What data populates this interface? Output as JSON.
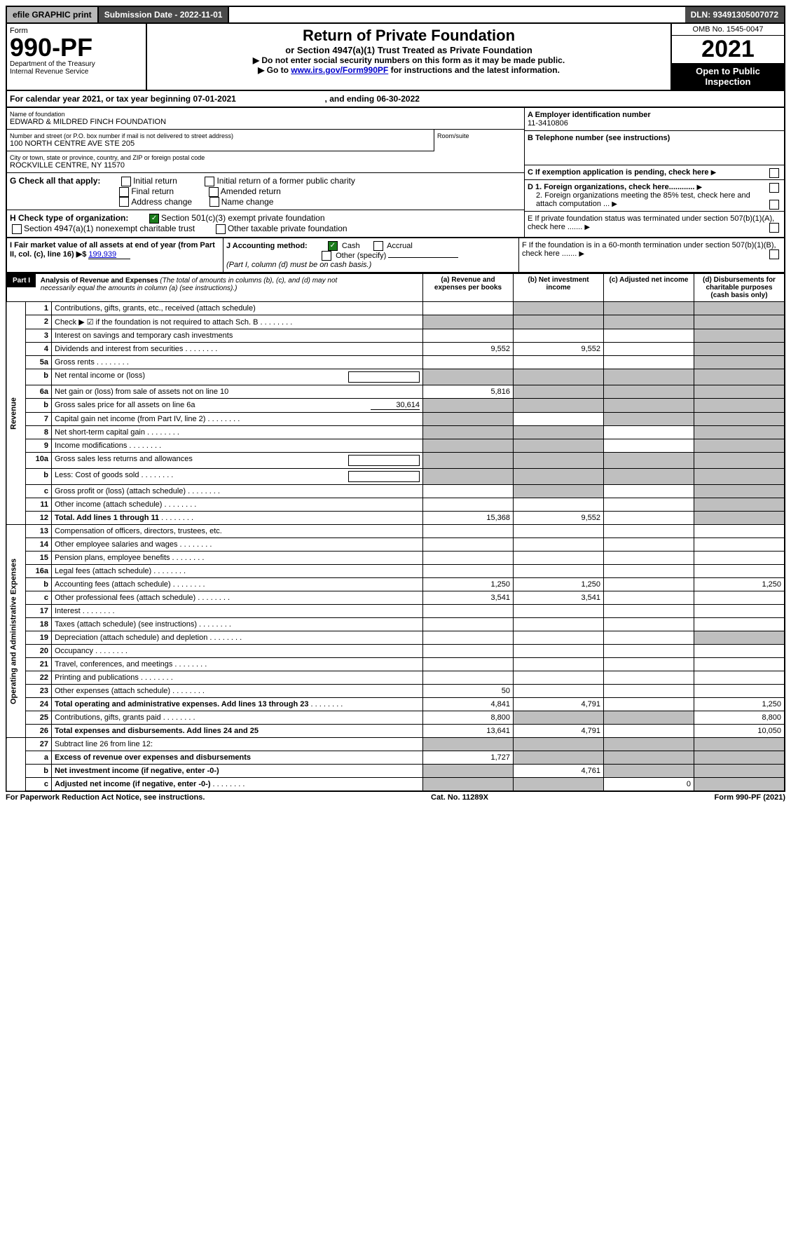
{
  "topbar": {
    "efile": "efile GRAPHIC print",
    "submission_label": "Submission Date - 2022-11-01",
    "dln": "DLN: 93491305007072"
  },
  "header": {
    "form_label": "Form",
    "form_number": "990-PF",
    "dept1": "Department of the Treasury",
    "dept2": "Internal Revenue Service",
    "title": "Return of Private Foundation",
    "subtitle": "or Section 4947(a)(1) Trust Treated as Private Foundation",
    "note1": "▶ Do not enter social security numbers on this form as it may be made public.",
    "note2_pre": "▶ Go to ",
    "note2_link": "www.irs.gov/Form990PF",
    "note2_post": " for instructions and the latest information.",
    "omb": "OMB No. 1545-0047",
    "year": "2021",
    "open": "Open to Public Inspection"
  },
  "calendar": {
    "text_pre": "For calendar year 2021, or tax year beginning ",
    "begin": "07-01-2021",
    "text_mid": " , and ending ",
    "end": "06-30-2022"
  },
  "foundation": {
    "name_label": "Name of foundation",
    "name": "EDWARD & MILDRED FINCH FOUNDATION",
    "street_label": "Number and street (or P.O. box number if mail is not delivered to street address)",
    "street": "100 NORTH CENTRE AVE STE 205",
    "room_label": "Room/suite",
    "city_label": "City or town, state or province, country, and ZIP or foreign postal code",
    "city": "ROCKVILLE CENTRE, NY  11570",
    "ein_label": "A Employer identification number",
    "ein": "11-3410806",
    "phone_label": "B Telephone number (see instructions)",
    "c_label": "C If exemption application is pending, check here",
    "d1_label": "D 1. Foreign organizations, check here............",
    "d2_label": "2. Foreign organizations meeting the 85% test, check here and attach computation ...",
    "e_label": "E  If private foundation status was terminated under section 507(b)(1)(A), check here .......",
    "f_label": "F  If the foundation is in a 60-month termination under section 507(b)(1)(B), check here ......."
  },
  "g": {
    "label": "G Check all that apply:",
    "initial": "Initial return",
    "initial_former": "Initial return of a former public charity",
    "final": "Final return",
    "amended": "Amended return",
    "address": "Address change",
    "name_change": "Name change"
  },
  "h": {
    "label": "H Check type of organization:",
    "opt1": "Section 501(c)(3) exempt private foundation",
    "opt2": "Section 4947(a)(1) nonexempt charitable trust",
    "opt3": "Other taxable private foundation"
  },
  "i": {
    "label": "I Fair market value of all assets at end of year (from Part II, col. (c), line 16) ▶$",
    "value": "199,939"
  },
  "j": {
    "label": "J Accounting method:",
    "cash": "Cash",
    "accrual": "Accrual",
    "other": "Other (specify)",
    "note": "(Part I, column (d) must be on cash basis.)"
  },
  "part1": {
    "label": "Part I",
    "title": "Analysis of Revenue and Expenses",
    "title_note": " (The total of amounts in columns (b), (c), and (d) may not necessarily equal the amounts in column (a) (see instructions).)",
    "col_a": "(a) Revenue and expenses per books",
    "col_b": "(b) Net investment income",
    "col_c": "(c) Adjusted net income",
    "col_d": "(d) Disbursements for charitable purposes (cash basis only)"
  },
  "sidelabels": {
    "revenue": "Revenue",
    "opex": "Operating and Administrative Expenses"
  },
  "rows": [
    {
      "n": "1",
      "label": "Contributions, gifts, grants, etc., received (attach schedule)",
      "a": "",
      "b": "shade",
      "c": "shade",
      "d": "shade"
    },
    {
      "n": "2",
      "label": "Check ▶ ☑ if the foundation is not required to attach Sch. B",
      "dots": true,
      "a": "shade",
      "b": "shade",
      "c": "shade",
      "d": "shade"
    },
    {
      "n": "3",
      "label": "Interest on savings and temporary cash investments",
      "a": "",
      "b": "",
      "c": "",
      "d": "shade"
    },
    {
      "n": "4",
      "label": "Dividends and interest from securities",
      "dots": true,
      "a": "9,552",
      "b": "9,552",
      "c": "",
      "d": "shade"
    },
    {
      "n": "5a",
      "label": "Gross rents",
      "dots": true,
      "a": "",
      "b": "",
      "c": "",
      "d": "shade"
    },
    {
      "n": "b",
      "label": "Net rental income or (loss)",
      "inline_box": true,
      "a": "shade",
      "b": "shade",
      "c": "shade",
      "d": "shade"
    },
    {
      "n": "6a",
      "label": "Net gain or (loss) from sale of assets not on line 10",
      "a": "5,816",
      "b": "shade",
      "c": "shade",
      "d": "shade"
    },
    {
      "n": "b",
      "label": "Gross sales price for all assets on line 6a",
      "inline_val": "30,614",
      "a": "shade",
      "b": "shade",
      "c": "shade",
      "d": "shade"
    },
    {
      "n": "7",
      "label": "Capital gain net income (from Part IV, line 2)",
      "dots": true,
      "a": "shade",
      "b": "",
      "c": "shade",
      "d": "shade"
    },
    {
      "n": "8",
      "label": "Net short-term capital gain",
      "dots": true,
      "a": "shade",
      "b": "shade",
      "c": "",
      "d": "shade"
    },
    {
      "n": "9",
      "label": "Income modifications",
      "dots": true,
      "a": "shade",
      "b": "shade",
      "c": "",
      "d": "shade"
    },
    {
      "n": "10a",
      "label": "Gross sales less returns and allowances",
      "inline_box": true,
      "a": "shade",
      "b": "shade",
      "c": "shade",
      "d": "shade"
    },
    {
      "n": "b",
      "label": "Less: Cost of goods sold",
      "dots": true,
      "inline_box": true,
      "a": "shade",
      "b": "shade",
      "c": "shade",
      "d": "shade"
    },
    {
      "n": "c",
      "label": "Gross profit or (loss) (attach schedule)",
      "dots": true,
      "a": "",
      "b": "shade",
      "c": "",
      "d": "shade"
    },
    {
      "n": "11",
      "label": "Other income (attach schedule)",
      "dots": true,
      "a": "",
      "b": "",
      "c": "",
      "d": "shade"
    },
    {
      "n": "12",
      "label": "Total. Add lines 1 through 11",
      "bold": true,
      "dots": true,
      "a": "15,368",
      "b": "9,552",
      "c": "",
      "d": "shade"
    }
  ],
  "opex_rows": [
    {
      "n": "13",
      "label": "Compensation of officers, directors, trustees, etc.",
      "a": "",
      "b": "",
      "c": "",
      "d": ""
    },
    {
      "n": "14",
      "label": "Other employee salaries and wages",
      "dots": true,
      "a": "",
      "b": "",
      "c": "",
      "d": ""
    },
    {
      "n": "15",
      "label": "Pension plans, employee benefits",
      "dots": true,
      "a": "",
      "b": "",
      "c": "",
      "d": ""
    },
    {
      "n": "16a",
      "label": "Legal fees (attach schedule)",
      "dots": true,
      "a": "",
      "b": "",
      "c": "",
      "d": ""
    },
    {
      "n": "b",
      "label": "Accounting fees (attach schedule)",
      "dots": true,
      "a": "1,250",
      "b": "1,250",
      "c": "",
      "d": "1,250"
    },
    {
      "n": "c",
      "label": "Other professional fees (attach schedule)",
      "dots": true,
      "a": "3,541",
      "b": "3,541",
      "c": "",
      "d": ""
    },
    {
      "n": "17",
      "label": "Interest",
      "dots": true,
      "a": "",
      "b": "",
      "c": "",
      "d": ""
    },
    {
      "n": "18",
      "label": "Taxes (attach schedule) (see instructions)",
      "dots": true,
      "a": "",
      "b": "",
      "c": "",
      "d": ""
    },
    {
      "n": "19",
      "label": "Depreciation (attach schedule) and depletion",
      "dots": true,
      "a": "",
      "b": "",
      "c": "",
      "d": "shade"
    },
    {
      "n": "20",
      "label": "Occupancy",
      "dots": true,
      "a": "",
      "b": "",
      "c": "",
      "d": ""
    },
    {
      "n": "21",
      "label": "Travel, conferences, and meetings",
      "dots": true,
      "a": "",
      "b": "",
      "c": "",
      "d": ""
    },
    {
      "n": "22",
      "label": "Printing and publications",
      "dots": true,
      "a": "",
      "b": "",
      "c": "",
      "d": ""
    },
    {
      "n": "23",
      "label": "Other expenses (attach schedule)",
      "dots": true,
      "a": "50",
      "b": "",
      "c": "",
      "d": ""
    },
    {
      "n": "24",
      "label": "Total operating and administrative expenses. Add lines 13 through 23",
      "bold": true,
      "dots": true,
      "a": "4,841",
      "b": "4,791",
      "c": "",
      "d": "1,250"
    },
    {
      "n": "25",
      "label": "Contributions, gifts, grants paid",
      "dots": true,
      "a": "8,800",
      "b": "shade",
      "c": "shade",
      "d": "8,800"
    },
    {
      "n": "26",
      "label": "Total expenses and disbursements. Add lines 24 and 25",
      "bold": true,
      "a": "13,641",
      "b": "4,791",
      "c": "",
      "d": "10,050"
    }
  ],
  "net_rows": [
    {
      "n": "27",
      "label": "Subtract line 26 from line 12:",
      "a": "shade",
      "b": "shade",
      "c": "shade",
      "d": "shade"
    },
    {
      "n": "a",
      "label": "Excess of revenue over expenses and disbursements",
      "bold": true,
      "a": "1,727",
      "b": "shade",
      "c": "shade",
      "d": "shade"
    },
    {
      "n": "b",
      "label": "Net investment income (if negative, enter -0-)",
      "bold": true,
      "a": "shade",
      "b": "4,761",
      "c": "shade",
      "d": "shade"
    },
    {
      "n": "c",
      "label": "Adjusted net income (if negative, enter -0-)",
      "bold": true,
      "dots": true,
      "a": "shade",
      "b": "shade",
      "c": "0",
      "d": "shade"
    }
  ],
  "footer": {
    "left": "For Paperwork Reduction Act Notice, see instructions.",
    "mid": "Cat. No. 11289X",
    "right": "Form 990-PF (2021)"
  }
}
